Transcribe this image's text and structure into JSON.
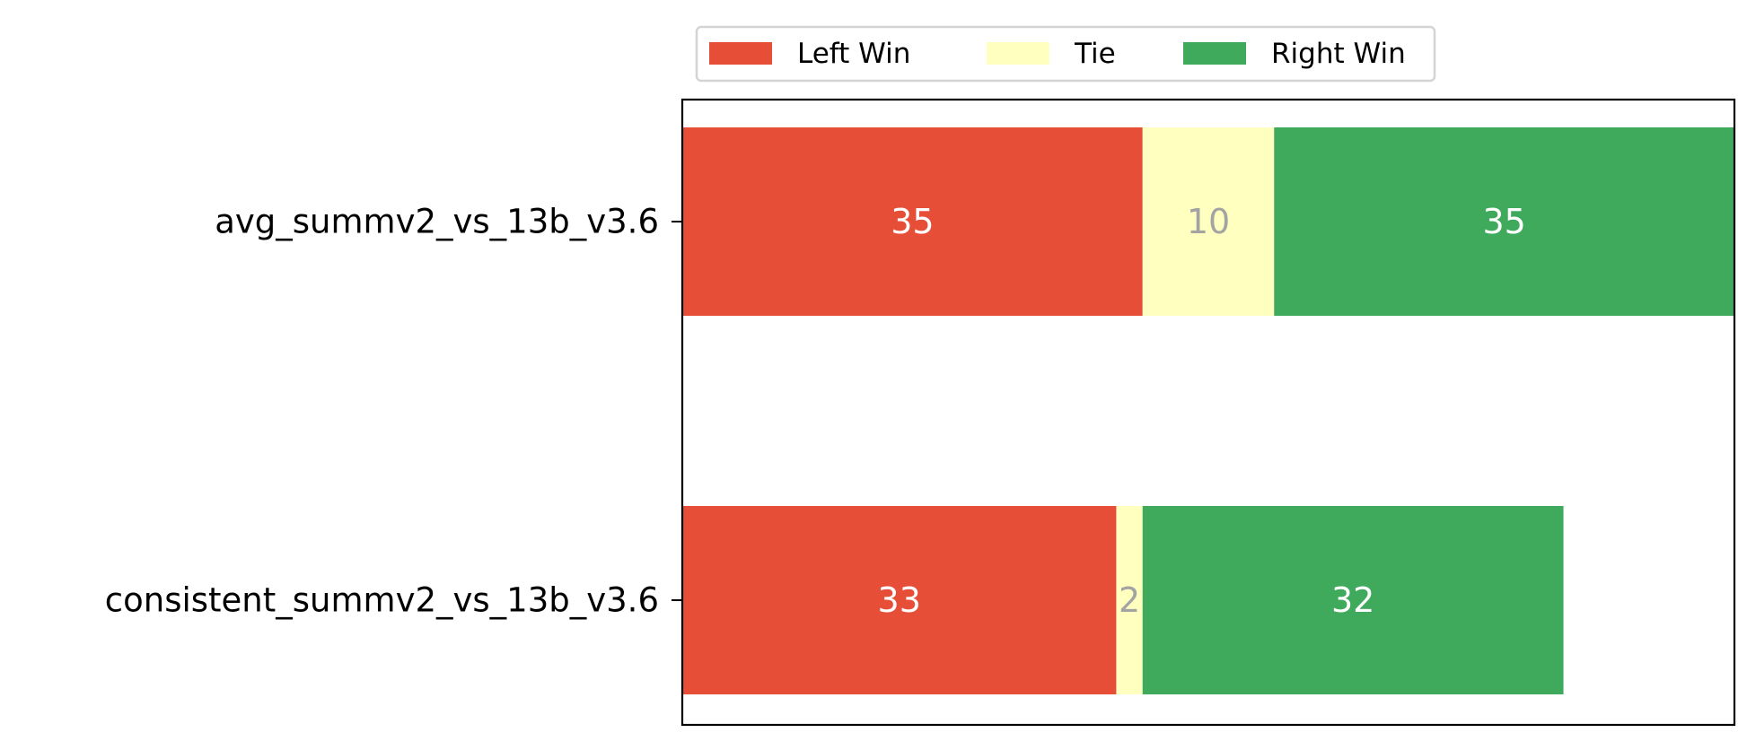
{
  "chart_data": {
    "type": "bar",
    "orientation": "horizontal",
    "stacked": true,
    "categories": [
      "avg_summv2_vs_13b_v3.6",
      "consistent_summv2_vs_13b_v3.6"
    ],
    "series": [
      {
        "name": "Left Win",
        "values": [
          35,
          33
        ],
        "color": "#e64e37",
        "label_color": "#ffffff"
      },
      {
        "name": "Tie",
        "values": [
          10,
          2
        ],
        "color": "#ffffc0",
        "label_color": "#a3a3a3"
      },
      {
        "name": "Right Win",
        "values": [
          35,
          32
        ],
        "color": "#3fa95c",
        "label_color": "#ffffff"
      }
    ],
    "xlim": [
      0,
      80
    ],
    "xlabel": "",
    "ylabel": "",
    "title": "",
    "grid": false,
    "legend": "top-center",
    "show_x_ticks": false
  }
}
